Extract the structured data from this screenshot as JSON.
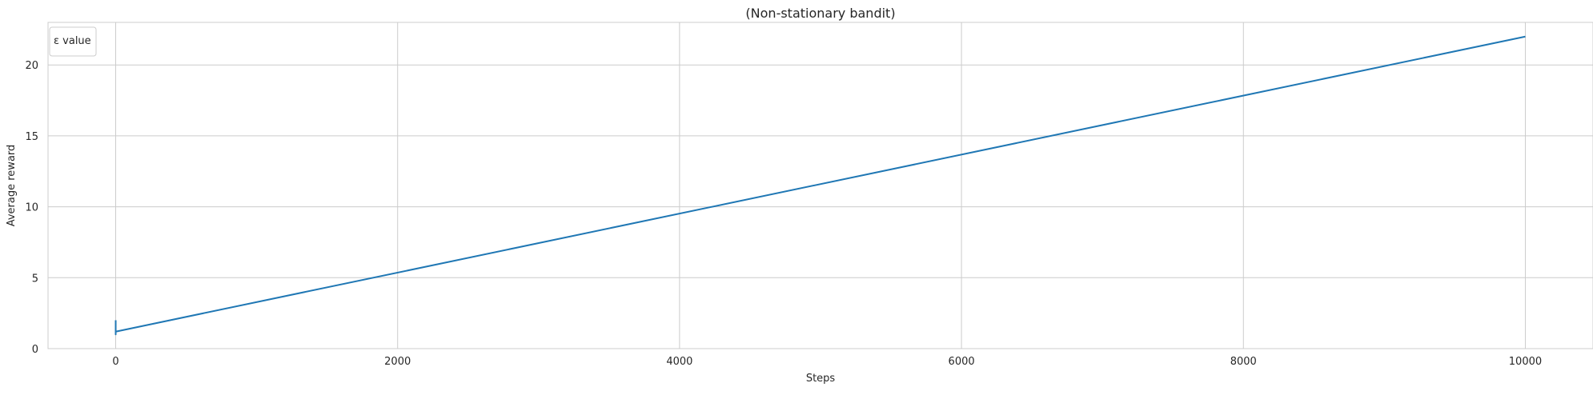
{
  "chart_data": {
    "type": "line",
    "title": "(Non-stationary bandit)",
    "xlabel": "Steps",
    "ylabel": "Average reward",
    "xlim": [
      -480,
      10480
    ],
    "ylim": [
      0,
      23
    ],
    "xticks": [
      0,
      2000,
      4000,
      6000,
      8000,
      10000
    ],
    "yticks": [
      0,
      5,
      10,
      15,
      20
    ],
    "grid": true,
    "legend": {
      "title": "ε value",
      "placement": "top-left",
      "entries": []
    },
    "series": [
      {
        "color": "#1f77b4",
        "x": [
          0,
          0,
          0,
          0,
          10000
        ],
        "y": [
          2.0,
          1.0,
          1.3,
          1.2,
          22.0
        ]
      }
    ]
  }
}
